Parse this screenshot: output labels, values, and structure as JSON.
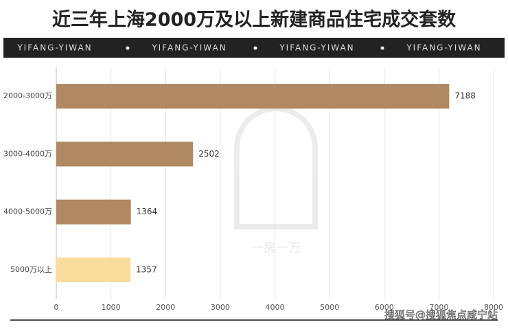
{
  "chart_data": {
    "type": "bar",
    "orientation": "horizontal",
    "title": "近三年上海2000万及以上新建商品住宅成交套数",
    "banner": [
      "YIFANG-YIWAN",
      "YIFANG-YIWAN",
      "YIFANG-YIWAN",
      "YIFANG-YIWAN"
    ],
    "categories": [
      "2000-3000万",
      "3000-4000万",
      "4000-5000万",
      "5000万以上"
    ],
    "values": [
      7188,
      2502,
      1364,
      1357
    ],
    "colors": [
      "#b08862",
      "#b08862",
      "#b08862",
      "#f9dc9c"
    ],
    "xlim": [
      0,
      8000
    ],
    "xticks": [
      0,
      1000,
      2000,
      3000,
      4000,
      5000,
      6000,
      7000,
      8000
    ],
    "grid": true,
    "logo_text": "一房一万",
    "watermark": "搜狐号@搜狐焦点咸宁站"
  }
}
